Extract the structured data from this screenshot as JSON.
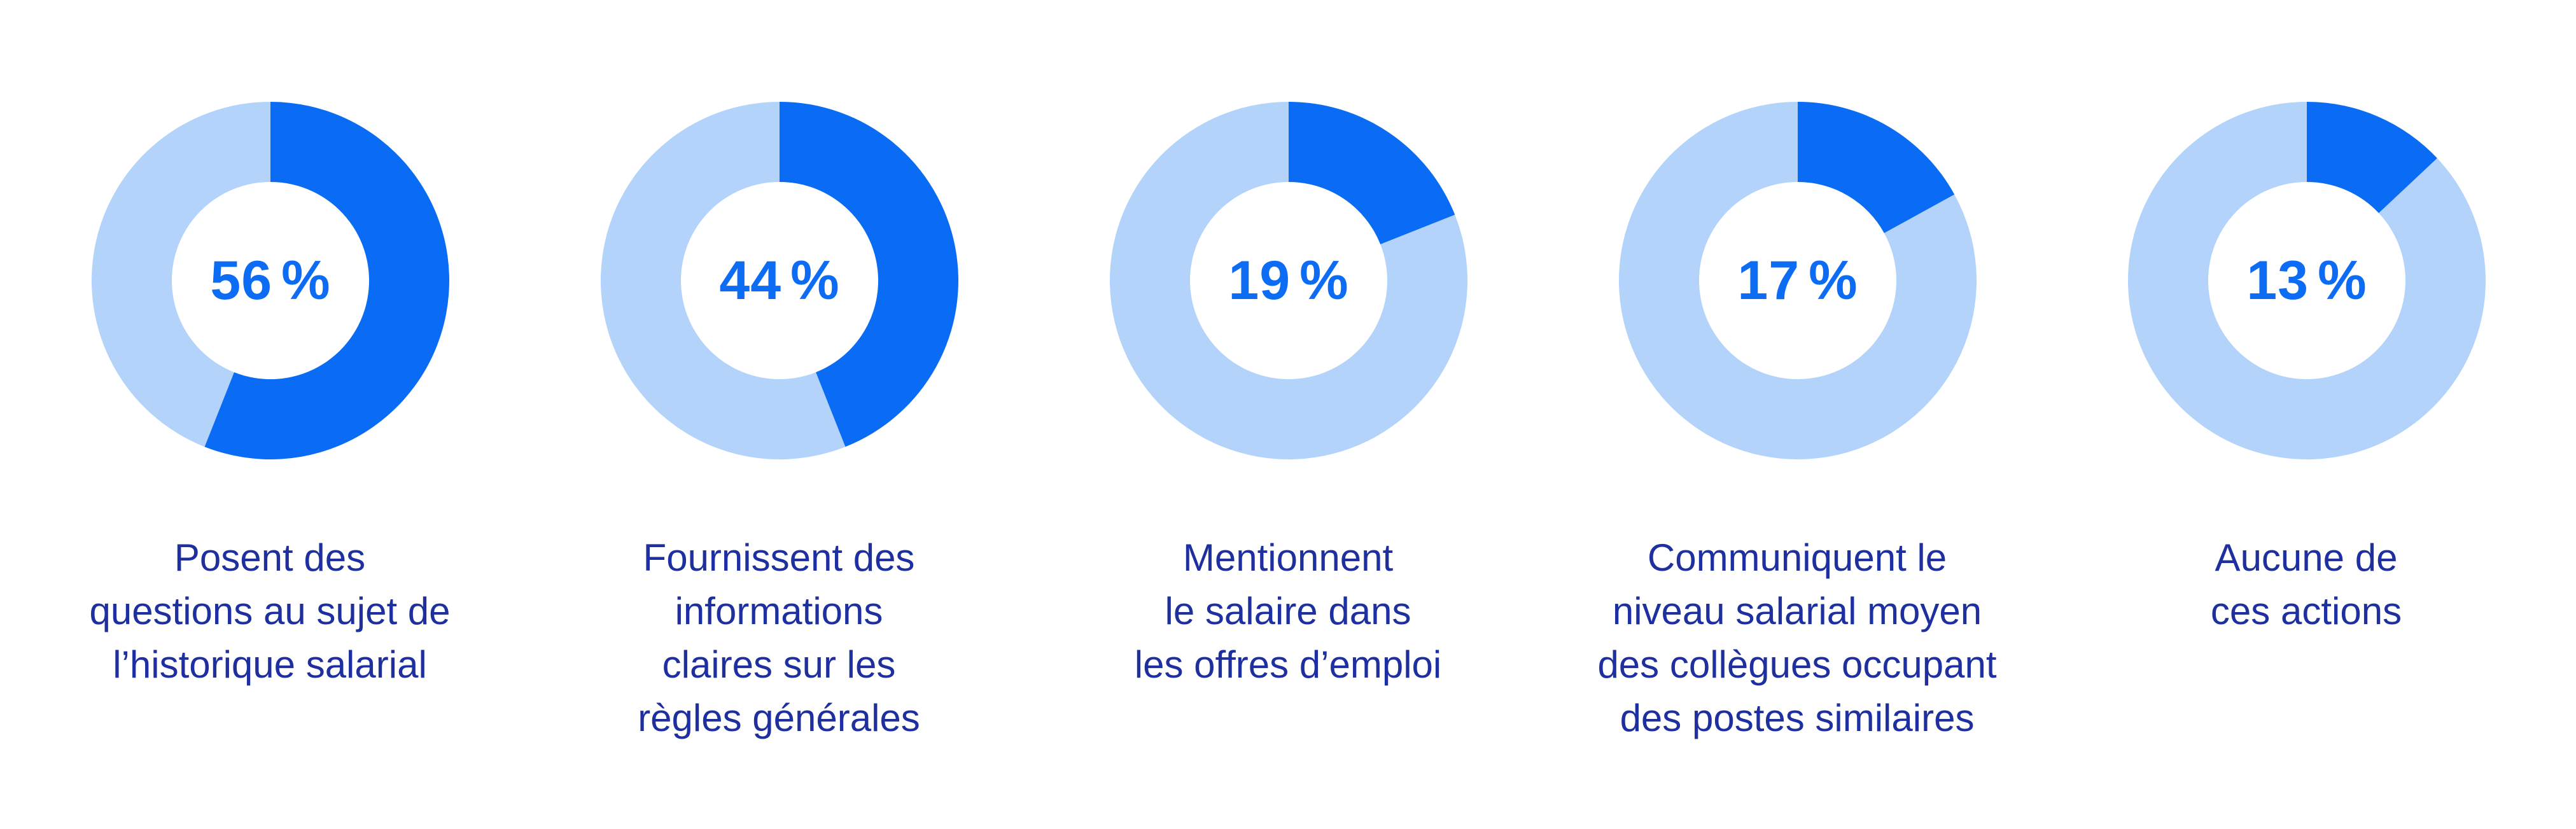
{
  "chart_data": {
    "type": "pie",
    "colors": {
      "share": "#0a6cf5",
      "rest": "#b3d3fb",
      "value_text": "#0c6cf4",
      "label_text": "#1e2fa0"
    },
    "items": [
      {
        "value": 56,
        "value_label": "56",
        "unit": "%",
        "label_lines": [
          "Posent des",
          "questions au sujet de",
          "l’historique salarial"
        ]
      },
      {
        "value": 44,
        "value_label": "44",
        "unit": "%",
        "label_lines": [
          "Fournissent des",
          "informations",
          "claires sur les",
          "règles générales"
        ]
      },
      {
        "value": 19,
        "value_label": "19",
        "unit": "%",
        "label_lines": [
          "Mentionnent",
          "le salaire dans",
          "les offres d’emploi"
        ]
      },
      {
        "value": 17,
        "value_label": "17",
        "unit": "%",
        "label_lines": [
          "Communiquent le",
          "niveau salarial moyen",
          "des collègues occupant",
          "des postes similaires"
        ]
      },
      {
        "value": 13,
        "value_label": "13",
        "unit": "%",
        "label_lines": [
          "Aucune de",
          "ces actions"
        ]
      }
    ]
  }
}
